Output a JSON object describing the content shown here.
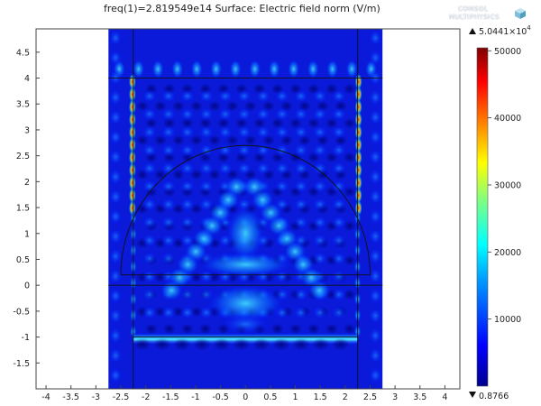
{
  "title": "freq(1)=2.819549e14  Surface: Electric field norm (V/m)",
  "logo": {
    "line1": "COMSOL",
    "line2": "MULTIPHYSICS"
  },
  "colorbar": {
    "max_label": "5.0441×10",
    "max_exp": "4",
    "min_label": "0.8766",
    "ticks": [
      "50000",
      "40000",
      "30000",
      "20000",
      "10000"
    ],
    "tick_values": [
      50000,
      40000,
      30000,
      20000,
      10000
    ],
    "min_value": 0.8766,
    "max_value": 50441,
    "colormap": [
      "#00008f",
      "#0000ff",
      "#00a0ff",
      "#00ffff",
      "#80ff80",
      "#ffff00",
      "#ff8000",
      "#ff0000",
      "#800000"
    ]
  },
  "chart_data": {
    "type": "heatmap",
    "title": "freq(1)=2.819549e14  Surface: Electric field norm (V/m)",
    "quantity": "Electric field norm (V/m)",
    "xlim": [
      -4.2,
      4.3
    ],
    "ylim": [
      -2.0,
      4.95
    ],
    "x_ticks": [
      "-4",
      "-3.5",
      "-3",
      "-2.5",
      "-2",
      "-1.5",
      "-1",
      "-0.5",
      "0",
      "0.5",
      "1",
      "1.5",
      "2",
      "2.5",
      "3",
      "3.5",
      "4"
    ],
    "x_tick_values": [
      -4,
      -3.5,
      -3,
      -2.5,
      -2,
      -1.5,
      -1,
      -0.5,
      0,
      0.5,
      1,
      1.5,
      2,
      2.5,
      3,
      3.5,
      4
    ],
    "y_ticks": [
      "-1.5",
      "-1",
      "-0.5",
      "0",
      "0.5",
      "1",
      "1.5",
      "2",
      "2.5",
      "3",
      "3.5",
      "4",
      "4.5"
    ],
    "y_tick_values": [
      -1.5,
      -1,
      -0.5,
      0,
      0.5,
      1,
      1.5,
      2,
      2.5,
      3,
      3.5,
      4,
      4.5
    ],
    "domain": {
      "x": [
        -2.75,
        2.75
      ],
      "y": [
        -2.0,
        4.95
      ]
    },
    "inner_box": {
      "x": [
        -2.25,
        2.25
      ],
      "y": [
        -1.0,
        4.0
      ]
    },
    "hemisphere": {
      "center": [
        0,
        0.2
      ],
      "radius": 2.5
    },
    "lines_y": [
      0.2,
      0
    ],
    "grid": false,
    "range": [
      0.8766,
      50441
    ]
  }
}
